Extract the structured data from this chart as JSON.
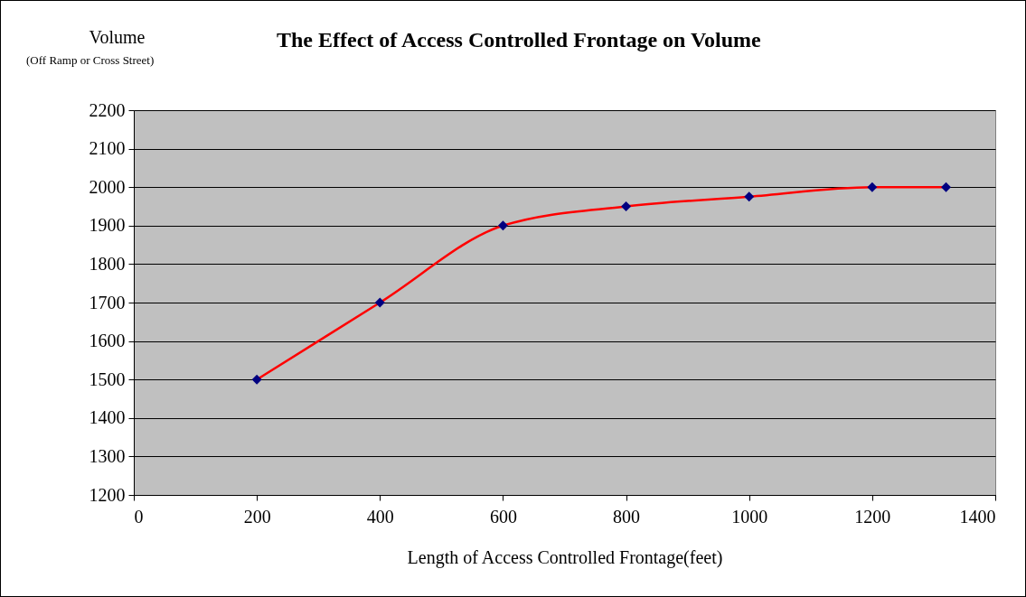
{
  "chart_data": {
    "type": "line",
    "title": "The Effect of Access Controlled Frontage on Volume",
    "xlabel": "Length of Access Controlled Frontage(feet)",
    "ylabel": "Volume",
    "annotations": [
      "(Off Ramp or Cross Street)"
    ],
    "x": [
      200,
      400,
      600,
      800,
      1000,
      1200,
      1320
    ],
    "series": [
      {
        "color": "#ff0000",
        "values": [
          1500,
          1700,
          1900,
          1950,
          1975,
          2000,
          2000
        ]
      },
      {
        "type": "scatter",
        "color": "#000080",
        "marker": "diamond",
        "values": [
          1500,
          1700,
          1900,
          1950,
          1975,
          2000,
          2000
        ]
      }
    ],
    "xlim": [
      0,
      1400
    ],
    "xticks": [
      0,
      200,
      400,
      600,
      800,
      1000,
      1200,
      1400
    ],
    "ylim": [
      1200,
      2200
    ],
    "yticks": [
      1200,
      1300,
      1400,
      1500,
      1600,
      1700,
      1800,
      1900,
      2000,
      2100,
      2200
    ],
    "grid": "y"
  }
}
